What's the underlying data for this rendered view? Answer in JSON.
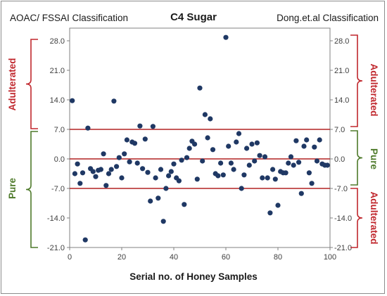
{
  "header": {
    "left_title": "AOAC/ FSSAI Classification",
    "right_title": "Dong.et.al Classification"
  },
  "left_annotations": {
    "adulterated": "Adulterated",
    "pure": "Pure"
  },
  "right_annotations": {
    "adulterated_top": "Adulterated",
    "pure": "Pure",
    "adulterated_bottom": "Adulterated"
  },
  "colors": {
    "points": "#1f3864",
    "threshold_lines": "#b22222",
    "adulterated": "#c0272d",
    "pure": "#4e7a2a",
    "axis": "#808080"
  },
  "chart_data": {
    "type": "scatter",
    "title": "C4 Sugar",
    "xlabel": "Serial no. of Honey Samples",
    "ylabel": "",
    "xlim": [
      0,
      100
    ],
    "ylim": [
      -21,
      31
    ],
    "x_ticks": [
      "0",
      "20",
      "40",
      "60",
      "80",
      "100"
    ],
    "x_tick_values": [
      0,
      20,
      40,
      60,
      80,
      100
    ],
    "y_ticks": [
      "28.0",
      "21.0",
      "14.0",
      "7.0",
      "0.0",
      "-7.0",
      "-14.0",
      "-21.0"
    ],
    "y_tick_values": [
      28,
      21,
      14,
      7,
      0,
      -7,
      -14,
      -21
    ],
    "reference_lines": [
      7,
      0,
      -7
    ],
    "grid": false,
    "series": [
      {
        "x": [
          1,
          2,
          3,
          4,
          5,
          6,
          7,
          8,
          9,
          10,
          11,
          12,
          13,
          14,
          15,
          16,
          17,
          18,
          19,
          20,
          21,
          22,
          23,
          24,
          25,
          26,
          27,
          28,
          29,
          30,
          31,
          32,
          33,
          34,
          35,
          36,
          37,
          38,
          39,
          40,
          41,
          42,
          43,
          44,
          45,
          46,
          47,
          48,
          49,
          50,
          51,
          52,
          53,
          54,
          55,
          56,
          57,
          58,
          59,
          60,
          61,
          62,
          63,
          64,
          65,
          66,
          67,
          68,
          69,
          70,
          71,
          72,
          73,
          74,
          75,
          76,
          77,
          78,
          79,
          80,
          81,
          82,
          83,
          84,
          85,
          86,
          87,
          88,
          89,
          90,
          91,
          92,
          93,
          94,
          95,
          96,
          97,
          98,
          99
        ],
        "y": [
          13.8,
          -3.5,
          -1.2,
          -5.8,
          -3.3,
          -19.2,
          7.3,
          -2.3,
          -3.0,
          -4.2,
          -2.7,
          -2.5,
          1.2,
          -6.3,
          -3.5,
          -2.5,
          13.7,
          -1.8,
          0.3,
          -4.5,
          1.2,
          4.5,
          -0.7,
          4.0,
          3.7,
          -1.0,
          7.8,
          -2.3,
          4.7,
          -3.2,
          -10.0,
          7.7,
          -4.5,
          -9.3,
          -2.5,
          -14.8,
          -7.0,
          -4.0,
          -3.0,
          -1.2,
          -4.5,
          -5.2,
          -0.3,
          -10.8,
          0.3,
          2.5,
          4.2,
          3.5,
          -4.8,
          16.8,
          -0.5,
          10.5,
          5.0,
          9.5,
          2.2,
          -3.5,
          -4.0,
          -1.0,
          -3.8,
          28.8,
          3.0,
          -1.0,
          -2.5,
          4.0,
          6.0,
          -7.0,
          -3.8,
          2.5,
          -1.5,
          3.5,
          -0.5,
          3.8,
          0.8,
          -4.5,
          0.5,
          -4.5,
          -12.8,
          -2.5,
          -4.8,
          -11.0,
          -3.0,
          -3.3,
          -3.3,
          -1.0,
          0.5,
          -1.5,
          4.3,
          -0.8,
          -8.2,
          3.0,
          4.5,
          -3.3,
          -5.8,
          2.8,
          -0.5,
          4.5,
          -1.2,
          -1.5,
          -1.5
        ]
      }
    ]
  }
}
